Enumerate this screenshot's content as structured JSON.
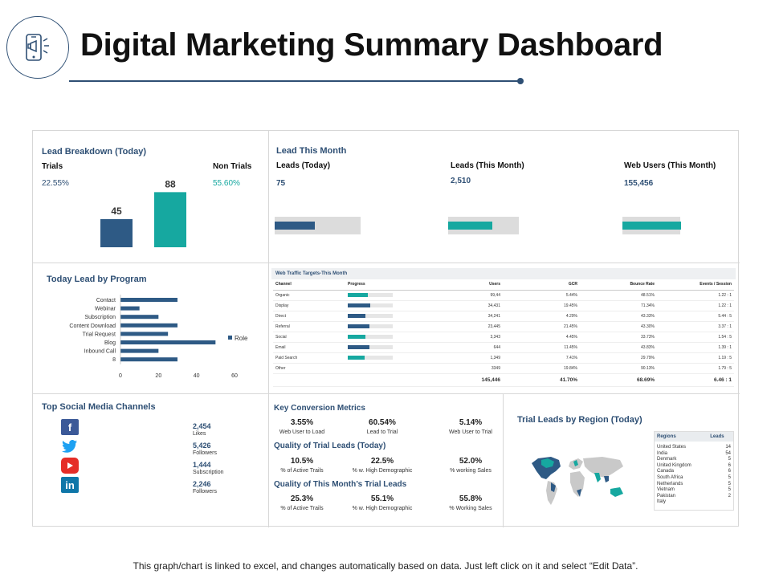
{
  "header": {
    "title": "Digital Marketing Summary Dashboard",
    "icon": "megaphone-phone-icon"
  },
  "footer": {
    "note": "This graph/chart is linked to excel, and changes automatically based on data.  Just left click on it and select “Edit Data”."
  },
  "lead_breakdown": {
    "title": "Lead Breakdown (Today)",
    "trials_label": "Trials",
    "trials_pct": "22.55%",
    "non_trials_label": "Non Trials",
    "non_trials_pct": "55.60%"
  },
  "lead_this_month": {
    "title": "Lead This Month",
    "kpis": [
      {
        "label": "Leads (Today)",
        "value": "75",
        "fill": 0.68,
        "color": "#2e5a85"
      },
      {
        "label": "Leads (This Month)",
        "value": "2,510",
        "fill": 0.74,
        "color": "#16a8a0"
      },
      {
        "label": "Web Users (This Month)",
        "value": "155,456",
        "fill": 0.98,
        "color": "#16a8a0"
      }
    ]
  },
  "lead_program": {
    "title": "Today  Lead by Program",
    "legend": "Role"
  },
  "web_traffic": {
    "title": "Web Traffic Targets-This Month",
    "headers": [
      "Channel",
      "Progress",
      "Users",
      "GCR",
      "Bounce Rate",
      "Events / Session"
    ],
    "rows": [
      {
        "channel": "Organic",
        "progress": 0.45,
        "color": "#16a8a0",
        "users": "99,44",
        "gcr": "5.44%",
        "bounce": "48.51%",
        "events": "1.22 : 1"
      },
      {
        "channel": "Display",
        "progress": 0.5,
        "color": "#2e5a85",
        "users": "34,431",
        "gcr": "19.45%",
        "bounce": "71.34%",
        "events": "1.22 : 1"
      },
      {
        "channel": "Direct",
        "progress": 0.4,
        "color": "#2e5a85",
        "users": "34,241",
        "gcr": "4.29%",
        "bounce": "43.33%",
        "events": "5.44 : 5"
      },
      {
        "channel": "Referral",
        "progress": 0.48,
        "color": "#2e5a85",
        "users": "23,445",
        "gcr": "21.45%",
        "bounce": "43.30%",
        "events": "3.37 : 1"
      },
      {
        "channel": "Social",
        "progress": 0.4,
        "color": "#16a8a0",
        "users": "3,343",
        "gcr": "4.45%",
        "bounce": "33.73%",
        "events": "1.54 : 5"
      },
      {
        "channel": "Email",
        "progress": 0.48,
        "color": "#2e5a85",
        "users": "644",
        "gcr": "11.45%",
        "bounce": "43.83%",
        "events": "1.39 : 1"
      },
      {
        "channel": "Paid Search",
        "progress": 0.38,
        "color": "#16a8a0",
        "users": "1,349",
        "gcr": "7.41%",
        "bounce": "29.79%",
        "events": "1.19 : 5"
      },
      {
        "channel": "Other",
        "progress": 0,
        "color": "#2e5a85",
        "users": "3349",
        "gcr": "19.84%",
        "bounce": "90.13%",
        "events": "1.79 : 5"
      }
    ],
    "totals": {
      "users": "145,446",
      "gcr": "41.70%",
      "bounce": "68.69%",
      "events": "6.46 : 1"
    }
  },
  "social": {
    "title": "Top Social Media Channels",
    "items": [
      {
        "icon": "facebook-icon",
        "value": "2,454",
        "label": "Likes"
      },
      {
        "icon": "twitter-icon",
        "value": "5,426",
        "label": "Followers"
      },
      {
        "icon": "youtube-icon",
        "value": "1,444",
        "label": "Subscription"
      },
      {
        "icon": "linkedin-icon",
        "value": "2,246",
        "label": "Followers"
      }
    ],
    "colors": {
      "facebook": "#3b5998",
      "twitter": "#1da1f2",
      "youtube": "#e52d27",
      "linkedin": "#0e76a8"
    }
  },
  "conversion": {
    "title": "Key Conversion Metrics",
    "row1": [
      {
        "value": "3.55%",
        "label": "Web User to Load"
      },
      {
        "value": "60.54%",
        "label": "Lead to Trial"
      },
      {
        "value": "5.14%",
        "label": "Web User to Trial"
      }
    ],
    "quality_today_title": "Quality of Trial Leads (Today)",
    "row2": [
      {
        "value": "10.5%",
        "label": "% of Active Trails"
      },
      {
        "value": "22.5%",
        "label": "% w.  High Demographic"
      },
      {
        "value": "52.0%",
        "label": "% working  Sales"
      }
    ],
    "quality_month_title": "Quality of This Month’s Trial Leads",
    "row3": [
      {
        "value": "25.3%",
        "label": "% of Active Trails"
      },
      {
        "value": "55.1%",
        "label": "% w.  High Demographic"
      },
      {
        "value": "55.8%",
        "label": "% Working  Sales"
      }
    ]
  },
  "region": {
    "title": "Trial Leads by Region (Today)",
    "col_regions": "Regions",
    "col_leads": "Leads",
    "rows": [
      {
        "region": "United States",
        "leads": "14"
      },
      {
        "region": "India",
        "leads": "54"
      },
      {
        "region": "Denmark",
        "leads": "5"
      },
      {
        "region": "United Kingdom",
        "leads": "6"
      },
      {
        "region": "Canada",
        "leads": "6"
      },
      {
        "region": "South Africa",
        "leads": "5"
      },
      {
        "region": "Netherlands",
        "leads": "5"
      },
      {
        "region": "Vietnam",
        "leads": "5"
      },
      {
        "region": "Pakistan",
        "leads": "2"
      },
      {
        "region": "Italy",
        "leads": ""
      }
    ]
  },
  "chart_data": [
    {
      "type": "bar",
      "categories": [
        "Trials",
        "Non Trials"
      ],
      "values": [
        45,
        88
      ],
      "colors": [
        "#2e5a85",
        "#16a8a0"
      ],
      "title": "Lead Breakdown (Today)"
    },
    {
      "type": "bar",
      "orientation": "horizontal",
      "title": "Today  Lead by Program",
      "categories": [
        "Contact",
        "Webinar",
        "Subscription",
        "Content Download",
        "Trial Request",
        "Blog",
        "Inbound Call",
        "8"
      ],
      "series": [
        {
          "name": "Role",
          "values": [
            30,
            10,
            20,
            30,
            25,
            50,
            20,
            30
          ]
        }
      ],
      "xlim": [
        0,
        60
      ],
      "xticks": [
        0,
        20,
        40,
        60
      ],
      "legend": "right",
      "color": "#2e5a85"
    }
  ]
}
